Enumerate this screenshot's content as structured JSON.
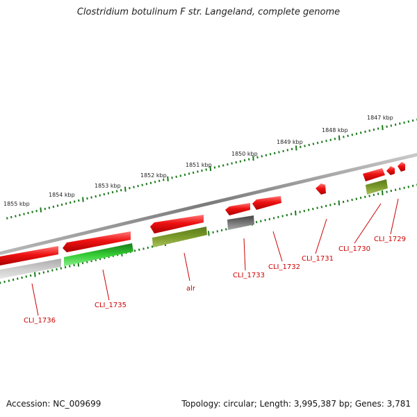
{
  "title": "Clostridium botulinum F str. Langeland, complete genome",
  "footer": {
    "accession": "Accession: NC_009699",
    "topology": "Topology: circular; Length: 3,995,387 bp; Genes: 3,781"
  },
  "ruler": {
    "labels": [
      "1855 kbp",
      "1854 kbp",
      "1853 kbp",
      "1852 kbp",
      "1851 kbp",
      "1850 kbp",
      "1849 kbp",
      "1848 kbp",
      "1847 kbp"
    ]
  },
  "genes": [
    {
      "label": "CLI_1736",
      "color": "#e00000"
    },
    {
      "label": "CLI_1735",
      "color": "#1fa01f"
    },
    {
      "label": "alr",
      "color": "#6f8f1f"
    },
    {
      "label": "CLI_1733",
      "color": "#666666"
    },
    {
      "label": "CLI_1732",
      "color": "#e00000"
    },
    {
      "label": "CLI_1731",
      "color": "#e00000"
    },
    {
      "label": "CLI_1730",
      "color": "#e00000"
    },
    {
      "label": "CLI_1729",
      "color": "#e00000"
    }
  ],
  "colors": {
    "backbone": "#8a8a8a",
    "tick": "#1a7a1a",
    "label": "#cc0000",
    "cds_red": "#ee1111",
    "cds_green": "#33cc33",
    "cds_olive": "#7a9a2a",
    "cds_gray": "#777777",
    "cds_lightgray": "#c8c8c8"
  }
}
